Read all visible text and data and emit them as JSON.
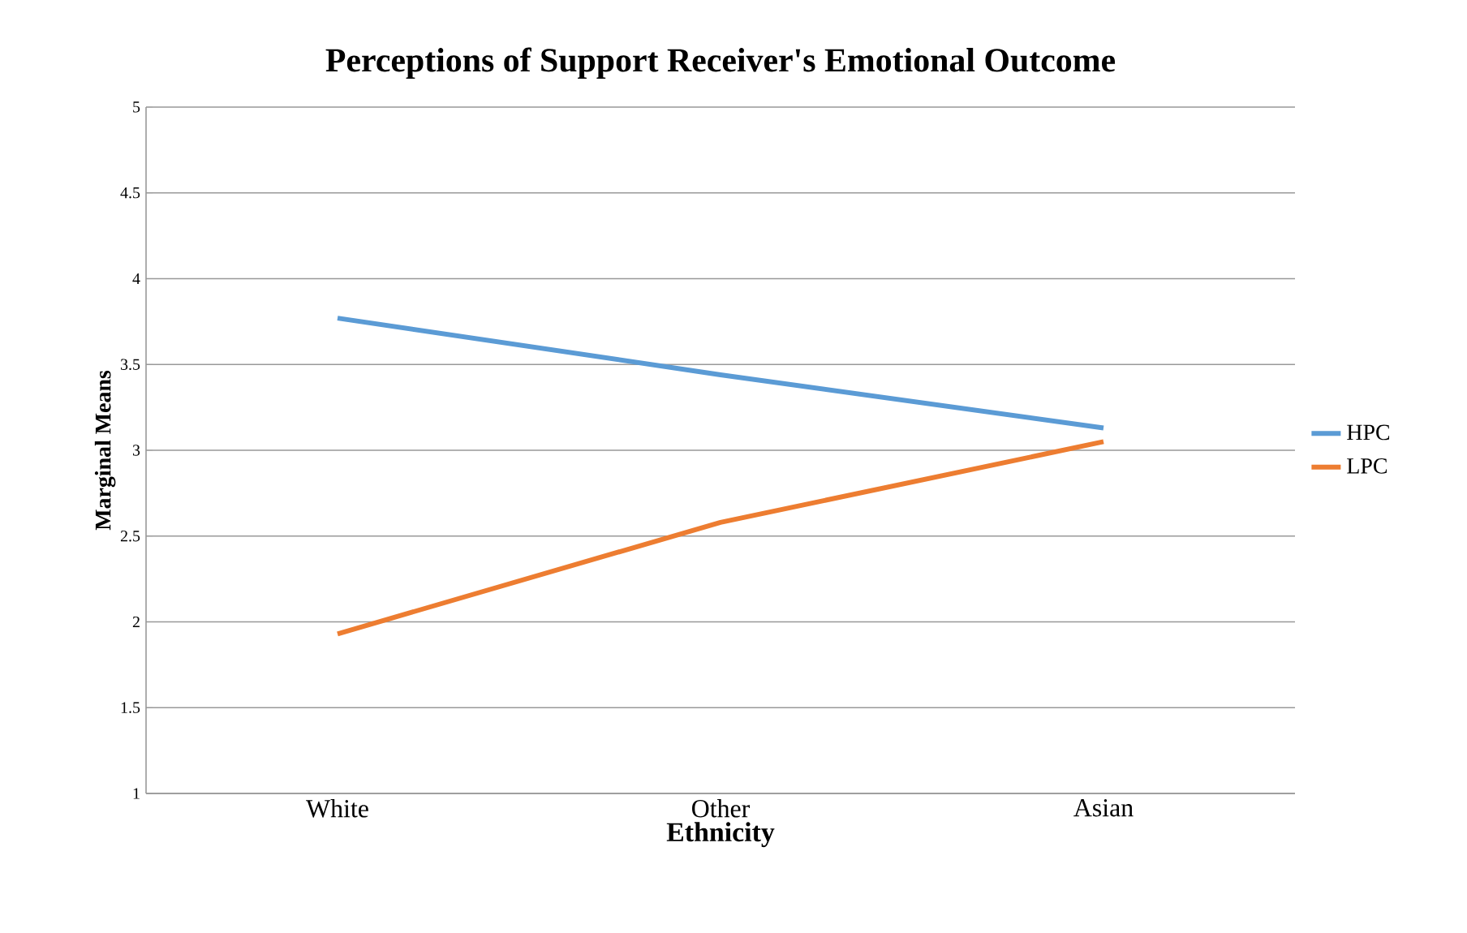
{
  "chart_data": {
    "type": "line",
    "title": "Perceptions of Support Receiver's Emotional  Outcome",
    "xlabel": "Ethnicity",
    "ylabel": "Marginal Means",
    "categories": [
      "White",
      "Other",
      "Asian"
    ],
    "series": [
      {
        "name": "HPC",
        "color": "#5b9bd5",
        "values": [
          3.77,
          3.44,
          3.13
        ]
      },
      {
        "name": "LPC",
        "color": "#ed7d31",
        "values": [
          1.93,
          2.58,
          3.05
        ]
      }
    ],
    "ylim": [
      1,
      5
    ],
    "yticks": [
      1,
      1.5,
      2,
      2.5,
      3,
      3.5,
      4,
      4.5,
      5
    ],
    "grid": "y",
    "legend": "right",
    "marker": "none",
    "line_style": "solid"
  }
}
